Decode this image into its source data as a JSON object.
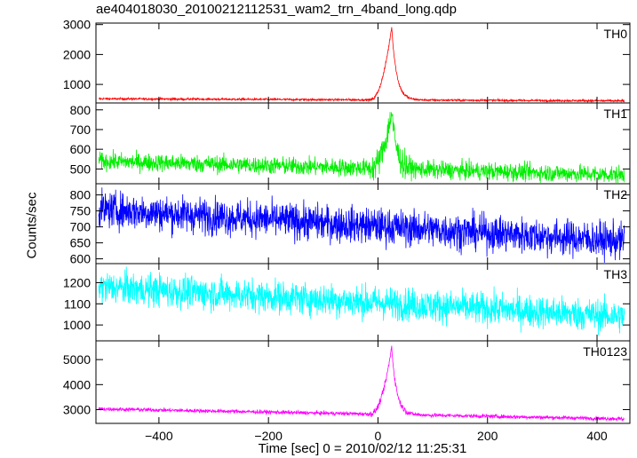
{
  "chart_data": {
    "type": "line",
    "title": "ae404018030_20100212112531_wam2_trn_4band_long.qdp",
    "xlabel": "Time [sec] 0 = 2010/02/12 11:25:31",
    "ylabel": "Counts/sec",
    "xlim": [
      -515,
      460
    ],
    "x_ticks": [
      -400,
      -200,
      0,
      200,
      400
    ],
    "x_tick_labels": [
      "−400",
      "−200",
      "0",
      "200",
      "400"
    ],
    "grid": false,
    "panels": [
      {
        "name": "TH0",
        "color": "#ff0000",
        "ylim": [
          380,
          3050
        ],
        "yticks": [
          1000,
          2000,
          3000
        ],
        "baseline_start": 520,
        "baseline_end": 450,
        "noise": 25,
        "peak": 2450,
        "peak_time": 25,
        "rise_start": -15,
        "decay": 9
      },
      {
        "name": "TH1",
        "color": "#00ee00",
        "ylim": [
          425,
          835
        ],
        "yticks": [
          500,
          600,
          700,
          800
        ],
        "baseline_start": 540,
        "baseline_end": 470,
        "noise": 32,
        "peak": 290,
        "peak_time": 25,
        "rise_start": -15,
        "decay": 9
      },
      {
        "name": "TH2",
        "color": "#0000ff",
        "ylim": [
          585,
          835
        ],
        "yticks": [
          600,
          650,
          700,
          750,
          800
        ],
        "baseline_start": 755,
        "baseline_end": 655,
        "noise": 40,
        "peak": 0,
        "peak_time": 25,
        "rise_start": -15,
        "decay": 9
      },
      {
        "name": "TH3",
        "color": "#00ffff",
        "ylim": [
          925,
          1290
        ],
        "yticks": [
          1000,
          1100,
          1200
        ],
        "baseline_start": 1180,
        "baseline_end": 1040,
        "noise": 55,
        "peak": 0,
        "peak_time": 25,
        "rise_start": -15,
        "decay": 9
      },
      {
        "name": "TH0123",
        "color": "#ff00ff",
        "ylim": [
          2450,
          5750
        ],
        "yticks": [
          3000,
          4000,
          5000
        ],
        "baseline_start": 3030,
        "baseline_end": 2630,
        "noise": 55,
        "peak": 2700,
        "peak_time": 25,
        "rise_start": -15,
        "decay": 9
      }
    ]
  }
}
